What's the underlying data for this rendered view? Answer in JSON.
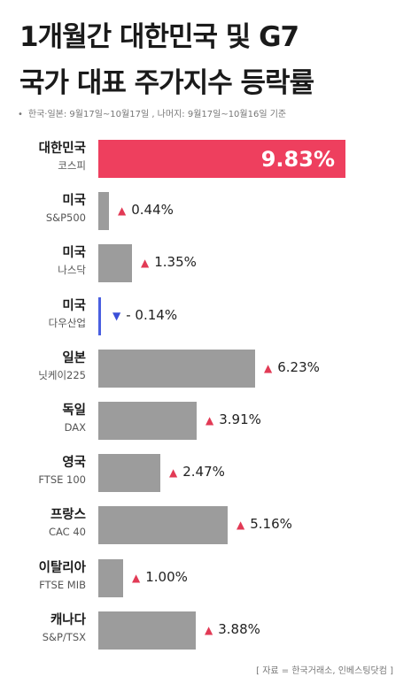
{
  "header": {
    "title_line1": "1개월간 대한민국 및 G7",
    "title_line2": "국가 대표 주가지수 등락률",
    "note_bullet": "•",
    "note": "한국·일본: 9월17일~10월17일 , 나머지: 9월17일~10월16일 기준"
  },
  "chart_data": {
    "type": "bar",
    "orientation": "horizontal",
    "unit": "%",
    "highlight_color": "#ee3f5e",
    "bar_color": "#9c9c9c",
    "negative_color": "#4a5fe0",
    "up_arrow_color": "#e23a55",
    "down_arrow_color": "#3a4fd8",
    "xlim": [
      0,
      9.83
    ],
    "items": [
      {
        "country": "대한민국",
        "index": "코스피",
        "value": 9.83,
        "label": "9.83%",
        "highlight": true
      },
      {
        "country": "미국",
        "index": "S&P500",
        "value": 0.44,
        "label": "0.44%",
        "arrow": "▲"
      },
      {
        "country": "미국",
        "index": "나스닥",
        "value": 1.35,
        "label": "1.35%",
        "arrow": "▲"
      },
      {
        "country": "미국",
        "index": "다우산업",
        "value": -0.14,
        "label": "- 0.14%",
        "arrow": "▼"
      },
      {
        "country": "일본",
        "index": "닛케이225",
        "value": 6.23,
        "label": "6.23%",
        "arrow": "▲"
      },
      {
        "country": "독일",
        "index": "DAX",
        "value": 3.91,
        "label": "3.91%",
        "arrow": "▲"
      },
      {
        "country": "영국",
        "index": "FTSE 100",
        "value": 2.47,
        "label": "2.47%",
        "arrow": "▲"
      },
      {
        "country": "프랑스",
        "index": "CAC 40",
        "value": 5.16,
        "label": "5.16%",
        "arrow": "▲"
      },
      {
        "country": "이탈리아",
        "index": "FTSE MIB",
        "value": 1.0,
        "label": "1.00%",
        "arrow": "▲"
      },
      {
        "country": "캐나다",
        "index": "S&P/TSX",
        "value": 3.88,
        "label": "3.88%",
        "arrow": "▲"
      }
    ]
  },
  "footer": {
    "source": "[ 자료 = 한국거래소, 인베스팅닷컴 ]"
  }
}
